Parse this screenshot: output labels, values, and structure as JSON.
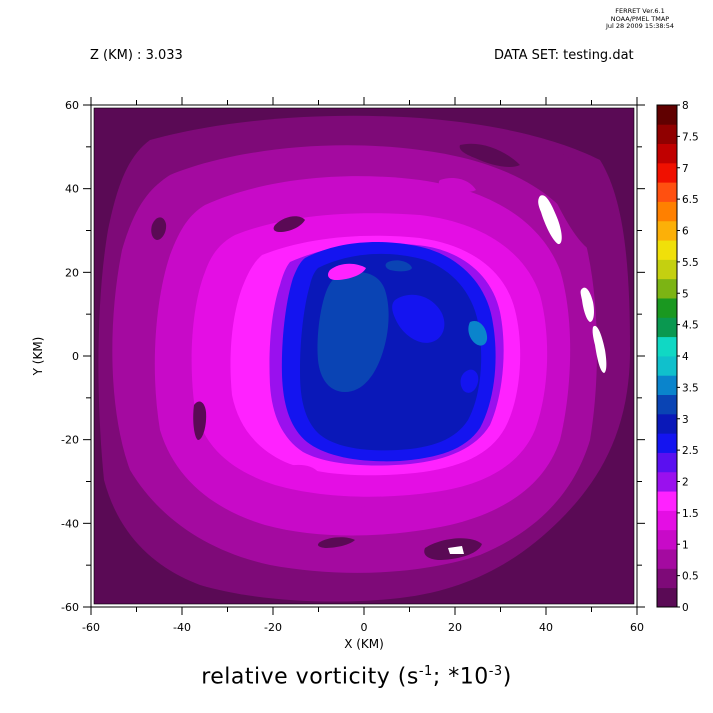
{
  "header": {
    "ferret_lines": [
      "FERRET  Ver.6.1",
      "NOAA/PMEL TMAP",
      "Jul 28 2009 15:38:54"
    ],
    "z_label": "Z (KM) : 3.033",
    "dataset_label": "DATA SET: testing.dat"
  },
  "chart_data": {
    "type": "heatmap",
    "caption_main": "relative vorticity (s",
    "caption_sup1": "-1",
    "caption_mid": "; *10",
    "caption_sup2": "-3",
    "caption_end": ")",
    "xlabel": "X (KM)",
    "ylabel": "Y (KM)",
    "xlim": [
      -60,
      60
    ],
    "ylim": [
      -60,
      60
    ],
    "xticks": [
      -60,
      -40,
      -20,
      0,
      20,
      40,
      60
    ],
    "yticks": [
      -60,
      -40,
      -20,
      0,
      20,
      40,
      60
    ],
    "colorbar": {
      "levels": [
        "0",
        "0.5",
        "1",
        "1.5",
        "2",
        "2.5",
        "3",
        "3.5",
        "4",
        "4.5",
        "5",
        "5.5",
        "6",
        "6.5",
        "7",
        "7.5",
        "8"
      ],
      "colors": [
        "#5a0a55",
        "#7e0a78",
        "#a40aa0",
        "#c80ac8",
        "#e40ee4",
        "#ff22ff",
        "#9a10ee",
        "#5a10f0",
        "#1414f0",
        "#0a18b8",
        "#0a44b4",
        "#0a84cc",
        "#10c0cc",
        "#10d8c4",
        "#0a9850",
        "#1a9820",
        "#7cb414",
        "#c4d010",
        "#f0e00a",
        "#fcb008",
        "#ff8000",
        "#ff5010",
        "#f01000",
        "#c00000",
        "#900000",
        "#600000"
      ]
    },
    "regions": [
      {
        "name": "background",
        "level": "0 to 0.5"
      },
      {
        "name": "outer ring",
        "level": "0.5 to 1"
      },
      {
        "name": "magenta ring",
        "level": "1 to 1.5"
      },
      {
        "name": "blue core",
        "level": "2.5 to 3.5"
      }
    ]
  },
  "colors": {
    "bg": "#5a0a55",
    "l1": "#7e0a78",
    "l2": "#a40aa0",
    "l3": "#c80ac8",
    "l4": "#e40ee4",
    "l5": "#ff22ff",
    "l6": "#9a10ee",
    "l7": "#5a10f0",
    "l8": "#1414f0",
    "l9": "#0a18b8",
    "l10": "#0a44b4",
    "l11": "#0a84cc"
  }
}
